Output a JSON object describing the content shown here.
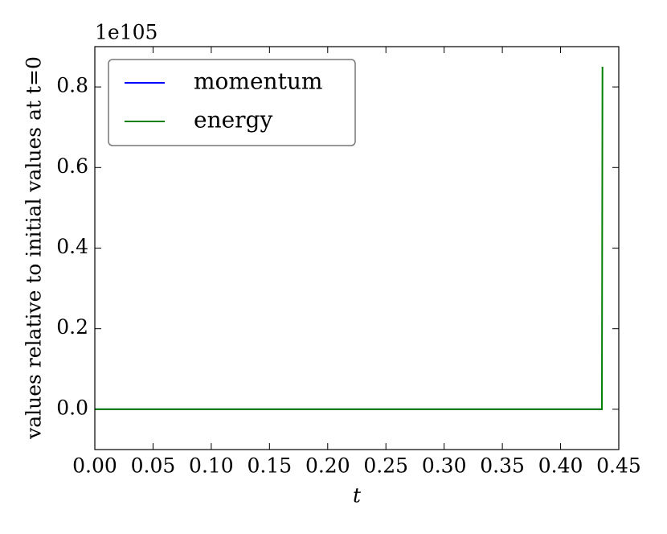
{
  "chart_data": {
    "type": "line",
    "xlabel": "t",
    "ylabel": "values relative to initial values at t=0",
    "offset_label": "1e105",
    "x": [
      0,
      0.4355,
      0.436
    ],
    "series": [
      {
        "name": "momentum",
        "color": "#0000ff",
        "values": [
          0,
          0,
          0
        ]
      },
      {
        "name": "energy",
        "color": "#008000",
        "values": [
          0,
          0,
          0.85
        ]
      }
    ],
    "xlim": [
      0,
      0.45
    ],
    "ylim": [
      -0.1,
      0.9
    ],
    "xticks": [
      {
        "value": 0,
        "label": "0.00"
      },
      0.05,
      {
        "value": 0.1,
        "label": "0.10"
      },
      0.15,
      {
        "value": 0.2,
        "label": "0.20"
      },
      0.25,
      {
        "value": 0.3,
        "label": "0.30"
      },
      0.35,
      {
        "value": 0.4,
        "label": "0.40"
      },
      0.45
    ],
    "yticks": [
      {
        "value": 0,
        "label": "0.0"
      },
      0.2,
      0.4,
      0.6,
      0.8
    ],
    "legend": "upper left"
  }
}
